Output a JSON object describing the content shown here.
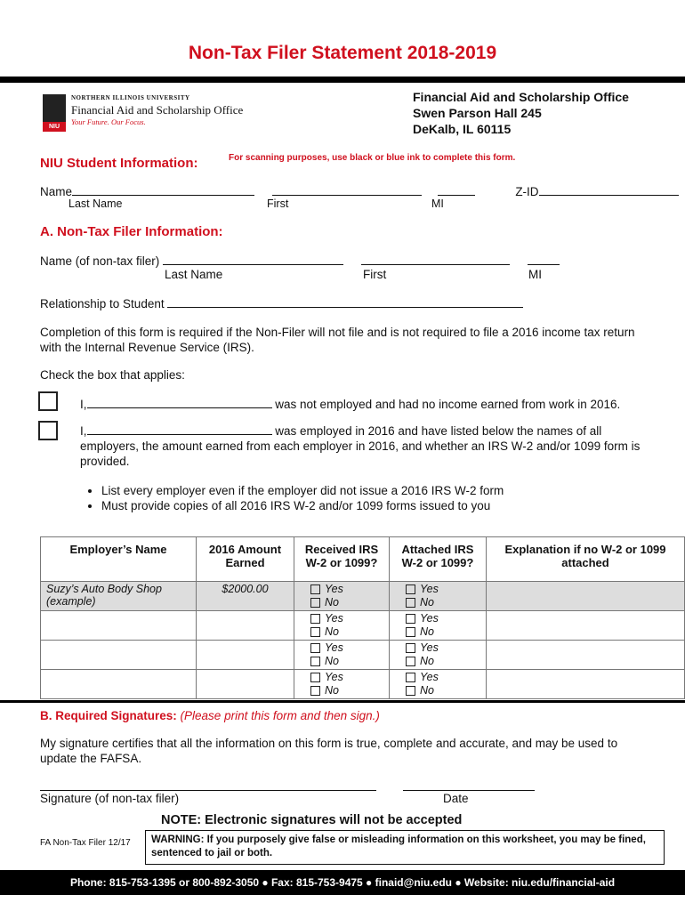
{
  "title": "Non-Tax Filer Statement 2018-2019",
  "logo": {
    "university": "NORTHERN ILLINOIS UNIVERSITY",
    "office": "Financial Aid and Scholarship Office",
    "tagline": "Your Future. Our Focus.",
    "mark": "NIU"
  },
  "office_address": [
    "Financial Aid and Scholarship Office",
    "Swen Parson Hall 245",
    "DeKalb, IL 60115"
  ],
  "student": {
    "heading": "NIU Student Information:",
    "scan_note": "For scanning purposes, use black or blue ink to complete this form.",
    "name_label": "Name",
    "zid_label": "Z-ID",
    "last": "Last Name",
    "first": "First",
    "mi": "MI"
  },
  "section_a": {
    "heading": "A. Non-Tax Filer Information:",
    "name_label": "Name (of non-tax filer)",
    "last": "Last Name",
    "first": "First",
    "mi": "MI",
    "relationship_label": "Relationship to Student",
    "completion_text": "Completion of this form is required if the Non-Filer will not file and is not required to file a 2016 income tax return with the Internal Revenue Service (IRS).",
    "check_label": "Check the box that applies:",
    "option1_prefix": "I,",
    "option1_text": "was not employed and had no income earned from work in 2016.",
    "option2_prefix": "I,",
    "option2_text": "was employed in 2016 and have listed below the names of all employers, the amount earned from each employer in 2016, and whether an IRS W-2 and/or 1099 form is provided.",
    "bullets": [
      "List every employer even if the employer did not issue a 2016 IRS W-2 form",
      "Must provide copies of all 2016 IRS W-2 and/or 1099 forms issued to you"
    ]
  },
  "table": {
    "headers": [
      "Employer’s Name",
      "2016 Amount Earned",
      "Received IRS W-2 or 1099?",
      "Attached IRS W-2 or 1099?",
      "Explanation if no W-2 or 1099 attached"
    ],
    "example": {
      "name": "Suzy’s Auto Body Shop (example)",
      "amount": "$2000.00"
    },
    "yes": "Yes",
    "no": "No"
  },
  "section_b": {
    "heading": "B. Required Signatures:",
    "heading_note": "(Please print this form and then sign.)",
    "certify": "My signature certifies that all the information on this form is true, complete and accurate, and may be used to update the FAFSA.",
    "sig_label": "Signature (of non-tax filer)",
    "date_label": "Date",
    "note": "NOTE:  Electronic signatures will not be accepted",
    "form_id": "FA Non-Tax Filer 12/17",
    "warning": "WARNING:  If you purposely give false or misleading information on this worksheet, you may be fined, sentenced to jail or both."
  },
  "footer": "Phone: 815-753-1395 or 800-892-3050   ● Fax: 815-753-9475   ● finaid@niu.edu   ●   Website: niu.edu/financial-aid"
}
